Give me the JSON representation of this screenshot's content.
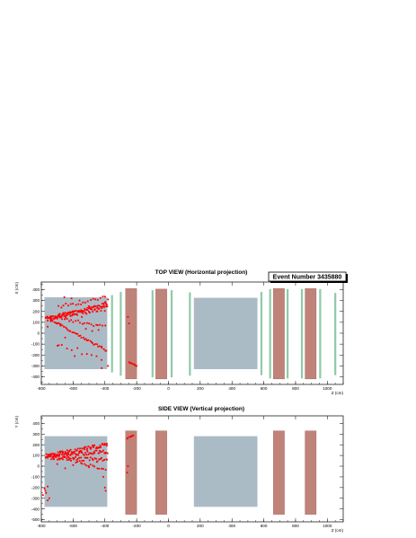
{
  "event_box": {
    "label": "Event Number 3435880"
  },
  "colors": {
    "target": "#abbbc6",
    "magnet": "#c0837a",
    "chamber": "#8fcaa8",
    "hit": "#ff0000"
  },
  "chart_data": [
    {
      "type": "scatter",
      "title": "TOP VIEW (Horizontal projection)",
      "xlabel": "Z (cm)",
      "ylabel": "X (cm)",
      "xlim": [
        -800,
        1100
      ],
      "ylim": [
        -470,
        470
      ],
      "xticks": [
        -800,
        -600,
        -400,
        -200,
        0,
        200,
        400,
        600,
        800,
        1000
      ],
      "xtick_labels": [
        "-800",
        "-600",
        "-400",
        "-200",
        "0",
        "200",
        "400",
        "600",
        "800",
        "1000"
      ],
      "yticks": [
        -400,
        -300,
        -200,
        -100,
        0,
        100,
        200,
        300,
        400
      ],
      "ytick_labels": [
        "-400",
        "-300",
        "-200",
        "-100",
        "0",
        "100",
        "200",
        "300",
        "400"
      ],
      "legend": "top-right",
      "detector": {
        "targets": [
          {
            "z": [
              -780,
              -385
            ],
            "y": [
              -330,
              330
            ]
          },
          {
            "z": [
              160,
              560
            ],
            "y": [
              -330,
              325
            ]
          }
        ],
        "magnets": [
          {
            "z": [
              -270,
              -200
            ],
            "y": [
              -420,
              410
            ]
          },
          {
            "z": [
              -80,
              -10
            ],
            "y": [
              -420,
              405
            ]
          },
          {
            "z": [
              660,
              730
            ],
            "y": [
              -420,
              410
            ]
          },
          {
            "z": [
              860,
              930
            ],
            "y": [
              -420,
              410
            ]
          }
        ],
        "chambers": [
          {
            "z": -355,
            "y": [
              -360,
              350
            ]
          },
          {
            "z": -300,
            "y": [
              -390,
              380
            ]
          },
          {
            "z": -100,
            "y": [
              -405,
              395
            ]
          },
          {
            "z": 20,
            "y": [
              -405,
              395
            ]
          },
          {
            "z": 135,
            "y": [
              -390,
              375
            ]
          },
          {
            "z": 585,
            "y": [
              -385,
              380
            ]
          },
          {
            "z": 640,
            "y": [
              -415,
              405
            ]
          },
          {
            "z": 750,
            "y": [
              -415,
              405
            ]
          },
          {
            "z": 840,
            "y": [
              -415,
              405
            ]
          },
          {
            "z": 955,
            "y": [
              -415,
              405
            ]
          },
          {
            "z": 1050,
            "y": [
              -385,
              370
            ]
          }
        ]
      },
      "tracks": [
        {
          "z": [
            -770,
            -385
          ],
          "y": [
            130,
            275
          ],
          "n": 60,
          "spread": 18
        },
        {
          "z": [
            -760,
            -385
          ],
          "y": [
            140,
            230
          ],
          "n": 55,
          "spread": 22
        },
        {
          "z": [
            -770,
            -390
          ],
          "y": [
            150,
            -160
          ],
          "n": 45,
          "spread": 10
        },
        {
          "z": [
            -740,
            -400
          ],
          "y": [
            150,
            60
          ],
          "n": 25,
          "spread": 14
        },
        {
          "z": [
            -700,
            -420
          ],
          "y": [
            -100,
            -230
          ],
          "n": 10,
          "spread": 30
        },
        {
          "z": [
            -690,
            -400
          ],
          "y": [
            240,
            330
          ],
          "n": 20,
          "spread": 20
        },
        {
          "z": [
            -250,
            -200
          ],
          "y": [
            -265,
            -300
          ],
          "n": 8,
          "spread": 3
        }
      ],
      "scatter_points": {
        "x": [
          -760,
          -740,
          -700,
          -655,
          -610,
          -560,
          -520,
          -480,
          -440,
          -420,
          -400,
          -640,
          -600,
          -540,
          -500,
          -690,
          -650,
          -380,
          -380,
          -590,
          -545,
          -255,
          -248,
          -680
        ],
        "y": [
          60,
          110,
          90,
          330,
          320,
          300,
          40,
          20,
          30,
          -320,
          280,
          170,
          180,
          200,
          230,
          -110,
          -40,
          -300,
          310,
          -210,
          150,
          150,
          90,
          70
        ]
      }
    },
    {
      "type": "scatter",
      "title": "SIDE VIEW (Vertical projection)",
      "xlabel": "Z (cm)",
      "ylabel": "Y (cm)",
      "xlim": [
        -800,
        1100
      ],
      "ylim": [
        -520,
        470
      ],
      "xticks": [
        -800,
        -600,
        -400,
        -200,
        0,
        200,
        400,
        600,
        800,
        1000
      ],
      "xtick_labels": [
        "-800",
        "-600",
        "-400",
        "-200",
        "0",
        "200",
        "400",
        "600",
        "800",
        "1000"
      ],
      "yticks": [
        -500,
        -400,
        -300,
        -200,
        -100,
        0,
        100,
        200,
        300,
        400
      ],
      "ytick_labels": [
        "-500",
        "-400",
        "-300",
        "-200",
        "-100",
        "0",
        "100",
        "200",
        "300",
        "400"
      ],
      "detector": {
        "targets": [
          {
            "z": [
              -780,
              -385
            ],
            "y": [
              -380,
              280
            ]
          },
          {
            "z": [
              160,
              560
            ],
            "y": [
              -380,
              280
            ]
          }
        ],
        "magnets": [
          {
            "z": [
              -270,
              -200
            ],
            "y": [
              -450,
              330
            ]
          },
          {
            "z": [
              -80,
              -10
            ],
            "y": [
              -450,
              330
            ]
          },
          {
            "z": [
              660,
              730
            ],
            "y": [
              -450,
              330
            ]
          },
          {
            "z": [
              860,
              930
            ],
            "y": [
              -450,
              330
            ]
          }
        ],
        "chambers": []
      },
      "tracks": [
        {
          "z": [
            -770,
            -385
          ],
          "y": [
            90,
            200
          ],
          "n": 70,
          "spread": 22
        },
        {
          "z": [
            -770,
            -385
          ],
          "y": [
            95,
            140
          ],
          "n": 60,
          "spread": 20
        },
        {
          "z": [
            -770,
            -385
          ],
          "y": [
            80,
            60
          ],
          "n": 45,
          "spread": 18
        },
        {
          "z": [
            -720,
            -395
          ],
          "y": [
            100,
            -30
          ],
          "n": 25,
          "spread": 14
        },
        {
          "z": [
            -260,
            -220
          ],
          "y": [
            260,
            290
          ],
          "n": 7,
          "spread": 6
        }
      ],
      "scatter_points": {
        "x": [
          -780,
          -770,
          -760,
          -750,
          -760,
          -790,
          -775,
          -400,
          -395,
          -410,
          -255,
          -260,
          -700,
          -650,
          -600,
          -550,
          -500,
          -450
        ],
        "y": [
          -210,
          -250,
          -190,
          -300,
          -320,
          -270,
          -230,
          -200,
          -230,
          -100,
          0,
          -60,
          20,
          -20,
          10,
          30,
          -10,
          40
        ]
      }
    }
  ]
}
